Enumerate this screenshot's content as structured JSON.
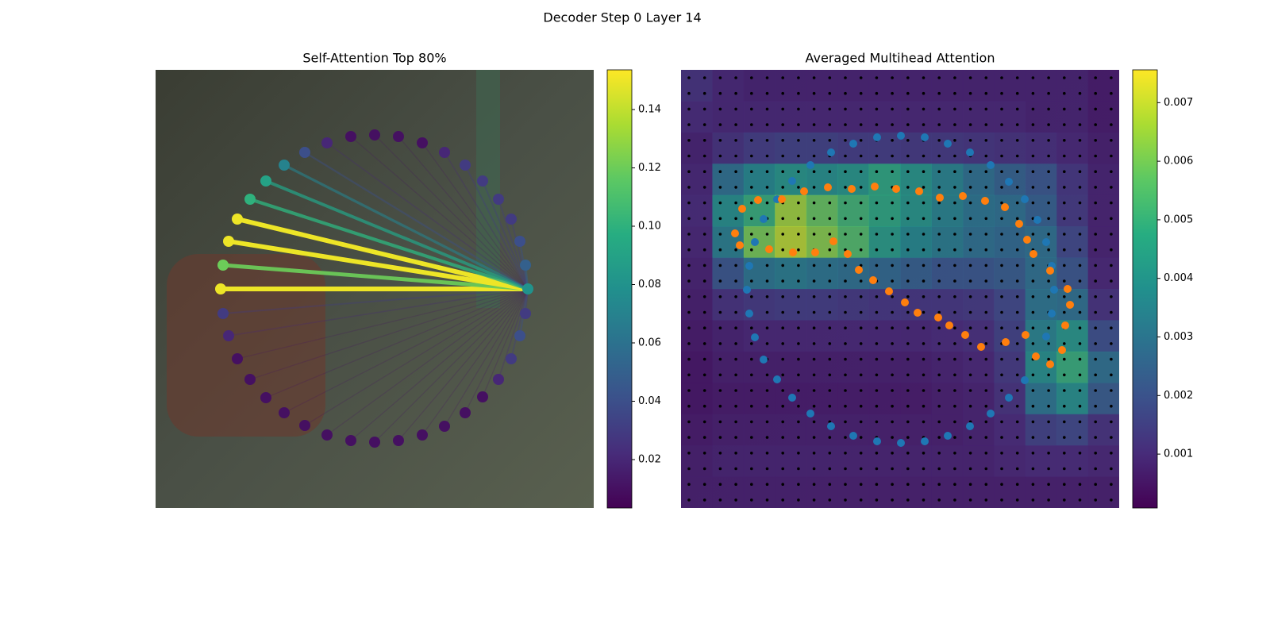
{
  "title": "Decoder Step 0 Layer 14",
  "chart_data": [
    {
      "type": "attention-graph",
      "title": "Self-Attention Top 80%",
      "colormap": "viridis",
      "target": 10,
      "xlim": [
        0,
        552
      ],
      "ylim": [
        0,
        552
      ],
      "x": [
        276,
        306,
        336,
        364,
        390,
        412,
        432,
        448,
        459,
        466,
        469,
        466,
        459,
        448,
        432,
        412,
        390,
        364,
        336,
        306,
        276,
        246,
        216,
        188,
        162,
        139,
        119,
        103,
        92,
        85,
        82,
        85,
        92,
        103,
        119,
        139,
        162,
        188,
        216,
        246
      ],
      "y": [
        82,
        84,
        92,
        104,
        120,
        140,
        163,
        188,
        216,
        246,
        276,
        307,
        335,
        364,
        390,
        412,
        432,
        449,
        460,
        467,
        469,
        467,
        460,
        448,
        432,
        413,
        390,
        364,
        335,
        307,
        276,
        246,
        216,
        188,
        163,
        140,
        120,
        104,
        92,
        84
      ],
      "weights": [
        0.01,
        0.01,
        0.01,
        0.02,
        0.03,
        0.03,
        0.03,
        0.03,
        0.04,
        0.05,
        0.08,
        0.03,
        0.04,
        0.03,
        0.02,
        0.01,
        0.01,
        0.01,
        0.01,
        0.01,
        0.01,
        0.01,
        0.01,
        0.01,
        0.01,
        0.01,
        0.01,
        0.01,
        0.02,
        0.03,
        0.15,
        0.12,
        0.15,
        0.15,
        0.1,
        0.09,
        0.07,
        0.04,
        0.02,
        0.01
      ],
      "clim": [
        0.0034,
        0.1536
      ],
      "cticks": [
        0.02,
        0.04,
        0.06,
        0.08,
        {
          "value": 0.1,
          "label": "0.10"
        },
        0.12,
        0.14
      ]
    },
    {
      "type": "heatmap",
      "title": "Averaged Multihead Attention",
      "colormap": "viridis",
      "xlim": [
        0,
        552
      ],
      "ylim": [
        0,
        552
      ],
      "z": [
        [
          0.0012,
          0.0009,
          0.0008,
          0.0008,
          0.0008,
          0.0008,
          0.0008,
          0.0008,
          0.0008,
          0.0008,
          0.0008,
          0.0008,
          0.0008,
          0.0006
        ],
        [
          0.001,
          0.0009,
          0.0009,
          0.0009,
          0.0009,
          0.0009,
          0.0009,
          0.0009,
          0.0009,
          0.0009,
          0.0009,
          0.0008,
          0.0008,
          0.0006
        ],
        [
          0.0008,
          0.0012,
          0.0015,
          0.0016,
          0.0016,
          0.0015,
          0.0015,
          0.0014,
          0.0014,
          0.0013,
          0.0012,
          0.0011,
          0.0009,
          0.0007
        ],
        [
          0.0009,
          0.003,
          0.0038,
          0.0042,
          0.004,
          0.0042,
          0.0048,
          0.0042,
          0.0036,
          0.003,
          0.0026,
          0.0022,
          0.0013,
          0.0008
        ],
        [
          0.001,
          0.004,
          0.005,
          0.0065,
          0.0058,
          0.0052,
          0.0048,
          0.0042,
          0.0036,
          0.0032,
          0.003,
          0.0025,
          0.0014,
          0.0008
        ],
        [
          0.0009,
          0.0035,
          0.006,
          0.0068,
          0.0062,
          0.0055,
          0.0044,
          0.0038,
          0.0034,
          0.003,
          0.0028,
          0.003,
          0.0018,
          0.0008
        ],
        [
          0.0008,
          0.0022,
          0.0032,
          0.0034,
          0.0032,
          0.003,
          0.0028,
          0.0025,
          0.0022,
          0.0022,
          0.0024,
          0.003,
          0.0022,
          0.0009
        ],
        [
          0.0007,
          0.0012,
          0.0014,
          0.0015,
          0.0015,
          0.0014,
          0.0013,
          0.0013,
          0.0013,
          0.0014,
          0.0018,
          0.0032,
          0.003,
          0.0012
        ],
        [
          0.0006,
          0.0008,
          0.0009,
          0.0009,
          0.0009,
          0.0009,
          0.0009,
          0.0009,
          0.001,
          0.0011,
          0.0016,
          0.0036,
          0.0042,
          0.002
        ],
        [
          0.0005,
          0.0007,
          0.0007,
          0.0007,
          0.0007,
          0.0007,
          0.0007,
          0.0007,
          0.0008,
          0.0009,
          0.0014,
          0.004,
          0.005,
          0.003
        ],
        [
          0.0005,
          0.0006,
          0.0006,
          0.0006,
          0.0006,
          0.0006,
          0.0006,
          0.0006,
          0.0007,
          0.0008,
          0.0012,
          0.0032,
          0.004,
          0.0024
        ],
        [
          0.0006,
          0.0007,
          0.0007,
          0.0007,
          0.0007,
          0.0007,
          0.0007,
          0.0007,
          0.0007,
          0.0008,
          0.001,
          0.0016,
          0.0018,
          0.0012
        ],
        [
          0.0007,
          0.0008,
          0.0008,
          0.0008,
          0.0008,
          0.0008,
          0.0008,
          0.0008,
          0.0008,
          0.0008,
          0.0009,
          0.001,
          0.001,
          0.0009
        ],
        [
          0.0007,
          0.0007,
          0.0007,
          0.0007,
          0.0007,
          0.0007,
          0.0007,
          0.0007,
          0.0007,
          0.0007,
          0.0007,
          0.0007,
          0.0007,
          0.0007
        ]
      ],
      "clim": [
        8e-05,
        0.00756
      ],
      "cticks": [
        0.001,
        0.002,
        0.003,
        0.004,
        0.005,
        0.006,
        0.007
      ],
      "series": [
        {
          "color": "#1f77b4",
          "x": [
            277,
            307,
            336,
            364,
            390,
            413,
            433,
            449,
            460,
            467,
            470,
            467,
            460,
            433,
            413,
            390,
            364,
            336,
            307,
            277,
            247,
            217,
            189,
            163,
            140,
            121,
            104,
            93,
            86,
            83,
            86,
            93,
            104,
            121,
            140,
            163,
            189,
            217,
            247
          ],
          "y": [
            83,
            85,
            93,
            104,
            120,
            141,
            163,
            189,
            217,
            247,
            277,
            307,
            336,
            391,
            413,
            433,
            449,
            461,
            468,
            470,
            468,
            461,
            449,
            433,
            413,
            390,
            365,
            337,
            307,
            277,
            247,
            217,
            188,
            163,
            140,
            120,
            104,
            93,
            85
          ]
        },
        {
          "color": "#ff7f0e",
          "x": [
            77,
            97,
            127,
            155,
            185,
            215,
            244,
            271,
            300,
            326,
            355,
            383,
            408,
            426,
            436,
            444,
            465,
            487,
            490,
            484,
            480,
            465,
            447,
            434,
            409,
            378,
            358,
            338,
            324,
            298,
            282,
            262,
            242,
            224,
            210,
            192,
            169,
            141,
            111,
            74,
            68
          ],
          "y": [
            175,
            164,
            163,
            153,
            148,
            150,
            147,
            150,
            153,
            161,
            159,
            165,
            173,
            194,
            214,
            232,
            253,
            276,
            296,
            322,
            353,
            371,
            361,
            334,
            343,
            349,
            334,
            322,
            312,
            306,
            293,
            279,
            265,
            252,
            232,
            216,
            230,
            230,
            226,
            221,
            206
          ]
        }
      ]
    }
  ]
}
